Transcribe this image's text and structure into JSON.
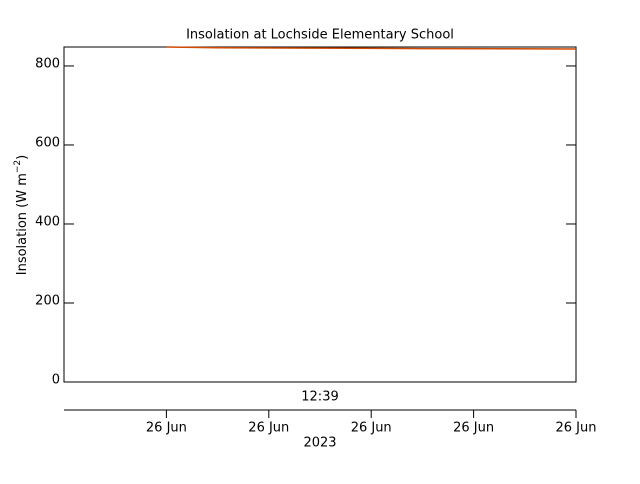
{
  "chart_data": {
    "type": "line",
    "title": "Insolation at Lochside Elementary School",
    "y_label": {
      "text": "Insolation (W m",
      "superscript": "−2",
      "suffix": ")"
    },
    "x": [
      1,
      1.5,
      3.5,
      5
    ],
    "series": [
      {
        "color": "#d04a00",
        "values": [
          848,
          846,
          844,
          843
        ]
      }
    ],
    "xlim": [
      0,
      5
    ],
    "xticks": [
      {
        "value": 1,
        "label": "26 Jun"
      },
      {
        "value": 2,
        "label": "26 Jun"
      },
      {
        "value": 3,
        "label": "26 Jun"
      },
      {
        "value": 4,
        "label": "26 Jun"
      },
      {
        "value": 5,
        "label": "26 Jun"
      }
    ],
    "ylim": [
      0,
      848
    ],
    "yticks": [
      0,
      200,
      400,
      600,
      800
    ],
    "annotations": [
      "12:39",
      "2023"
    ]
  }
}
